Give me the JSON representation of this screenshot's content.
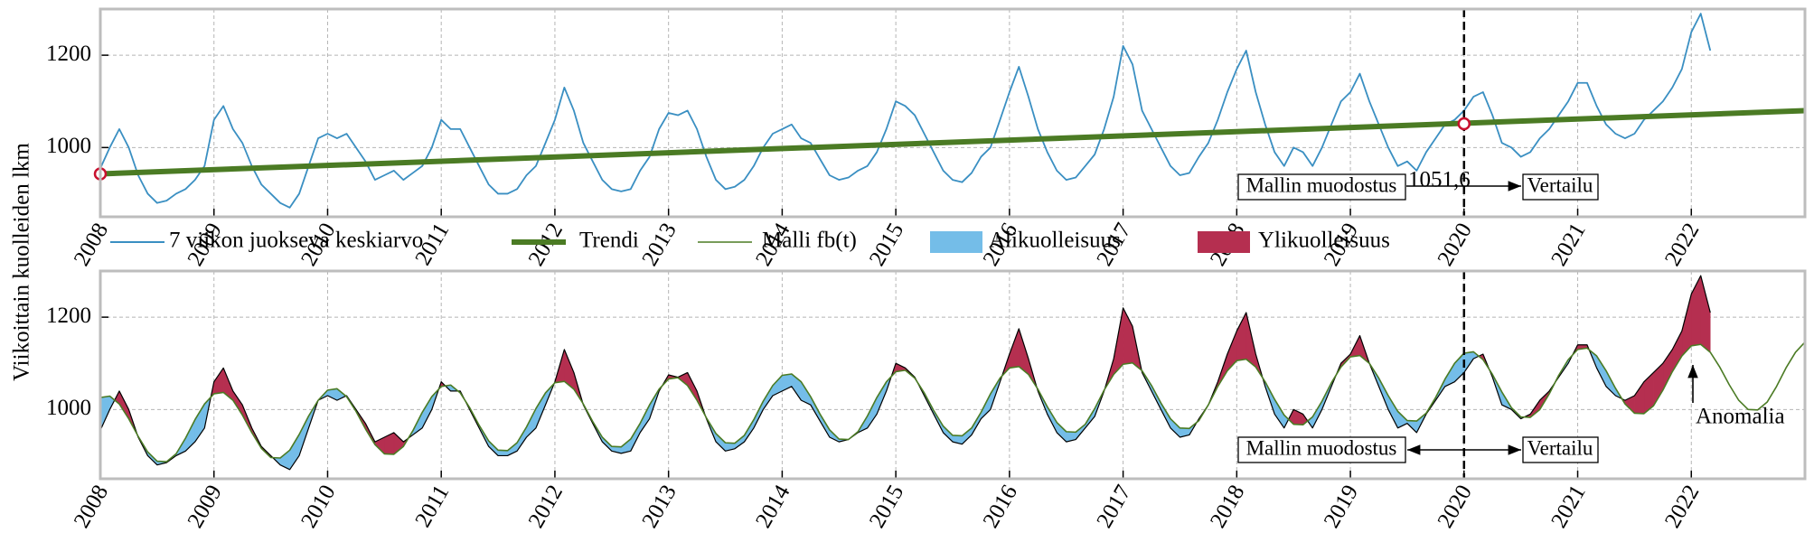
{
  "chart_data": [
    {
      "type": "line",
      "ylabel": "Viikoittain kuolleiden lkm",
      "x": [
        2008,
        2008.083,
        2008.167,
        2008.25,
        2008.333,
        2008.417,
        2008.5,
        2008.583,
        2008.667,
        2008.75,
        2008.833,
        2008.917,
        2009,
        2009.083,
        2009.167,
        2009.25,
        2009.333,
        2009.417,
        2009.5,
        2009.583,
        2009.667,
        2009.75,
        2009.833,
        2009.917,
        2010,
        2010.083,
        2010.167,
        2010.25,
        2010.333,
        2010.417,
        2010.5,
        2010.583,
        2010.667,
        2010.75,
        2010.833,
        2010.917,
        2011,
        2011.083,
        2011.167,
        2011.25,
        2011.333,
        2011.417,
        2011.5,
        2011.583,
        2011.667,
        2011.75,
        2011.833,
        2011.917,
        2012,
        2012.083,
        2012.167,
        2012.25,
        2012.333,
        2012.417,
        2012.5,
        2012.583,
        2012.667,
        2012.75,
        2012.833,
        2012.917,
        2013,
        2013.083,
        2013.167,
        2013.25,
        2013.333,
        2013.417,
        2013.5,
        2013.583,
        2013.667,
        2013.75,
        2013.833,
        2013.917,
        2014,
        2014.083,
        2014.167,
        2014.25,
        2014.333,
        2014.417,
        2014.5,
        2014.583,
        2014.667,
        2014.75,
        2014.833,
        2014.917,
        2015,
        2015.083,
        2015.167,
        2015.25,
        2015.333,
        2015.417,
        2015.5,
        2015.583,
        2015.667,
        2015.75,
        2015.833,
        2015.917,
        2016,
        2016.083,
        2016.167,
        2016.25,
        2016.333,
        2016.417,
        2016.5,
        2016.583,
        2016.667,
        2016.75,
        2016.833,
        2016.917,
        2017,
        2017.083,
        2017.167,
        2017.25,
        2017.333,
        2017.417,
        2017.5,
        2017.583,
        2017.667,
        2017.75,
        2017.833,
        2017.917,
        2018,
        2018.083,
        2018.167,
        2018.25,
        2018.333,
        2018.417,
        2018.5,
        2018.583,
        2018.667,
        2018.75,
        2018.833,
        2018.917,
        2019,
        2019.083,
        2019.167,
        2019.25,
        2019.333,
        2019.417,
        2019.5,
        2019.583,
        2019.667,
        2019.75,
        2019.833,
        2019.917,
        2020,
        2020.083,
        2020.167,
        2020.25,
        2020.333,
        2020.417,
        2020.5,
        2020.583,
        2020.667,
        2020.75,
        2020.833,
        2020.917,
        2021,
        2021.083,
        2021.167,
        2021.25,
        2021.333,
        2021.417,
        2021.5,
        2021.583,
        2021.667,
        2021.75,
        2021.833,
        2021.917,
        2022,
        2022.083,
        2022.167,
        2022.25,
        2022.333,
        2022.417,
        2022.5,
        2022.583,
        2022.667,
        2022.75,
        2022.833,
        2022.917,
        2023
      ],
      "series": [
        {
          "name": "7 viikon juokseva keskiarvo",
          "color": "#3a8fc2",
          "values": [
            955,
            1000,
            1040,
            1000,
            940,
            900,
            880,
            885,
            900,
            910,
            930,
            960,
            1060,
            1090,
            1040,
            1010,
            960,
            920,
            900,
            880,
            870,
            900,
            960,
            1020,
            1030,
            1020,
            1030,
            1000,
            970,
            930,
            940,
            950,
            930,
            945,
            960,
            1000,
            1060,
            1040,
            1040,
            1000,
            960,
            920,
            900,
            900,
            910,
            940,
            960,
            1010,
            1060,
            1130,
            1080,
            1010,
            970,
            930,
            910,
            905,
            910,
            950,
            980,
            1040,
            1075,
            1070,
            1080,
            1040,
            980,
            930,
            910,
            915,
            930,
            960,
            1000,
            1030,
            1040,
            1050,
            1020,
            1010,
            975,
            940,
            930,
            935,
            950,
            960,
            990,
            1040,
            1100,
            1090,
            1070,
            1030,
            990,
            950,
            930,
            925,
            945,
            980,
            1000,
            1060,
            1120,
            1175,
            1110,
            1040,
            990,
            950,
            930,
            935,
            960,
            985,
            1040,
            1110,
            1220,
            1180,
            1080,
            1040,
            1000,
            960,
            940,
            945,
            980,
            1010,
            1060,
            1120,
            1170,
            1210,
            1120,
            1050,
            990,
            960,
            1000,
            990,
            960,
            1000,
            1050,
            1100,
            1120,
            1160,
            1100,
            1050,
            1000,
            960,
            970,
            950,
            990,
            1020,
            1050,
            1060,
            1080,
            1110,
            1120,
            1070,
            1010,
            1000,
            980,
            990,
            1020,
            1040,
            1070,
            1100,
            1140,
            1140,
            1090,
            1050,
            1030,
            1020,
            1030,
            1060,
            1080,
            1100,
            1130,
            1170,
            1250,
            1290,
            1210,
            null,
            null,
            null,
            null,
            null,
            null,
            null,
            null,
            null,
            null
          ]
        },
        {
          "name": "Trendi",
          "color": "#4b7b24",
          "x": [
            2008,
            2023
          ],
          "values": [
            943,
            1080
          ]
        }
      ],
      "points": {
        "x": [
          2008,
          2020
        ],
        "values": [
          943,
          1051.6
        ],
        "color": "#c8102e"
      },
      "point_label": "1051,6",
      "vline": 2020,
      "annotations": [
        "Mallin muodostus",
        "Vertailu"
      ],
      "xlim": [
        2008,
        2023
      ],
      "ylim": [
        850,
        1300
      ],
      "xticks": [
        2008,
        2009,
        2010,
        2011,
        2012,
        2013,
        2014,
        2015,
        2016,
        2017,
        2018,
        2019,
        2020,
        2021,
        2022
      ],
      "yticks": [
        1000,
        1200
      ],
      "grid": true
    },
    {
      "type": "fill_between",
      "x": [
        2008,
        2008.083,
        2008.167,
        2008.25,
        2008.333,
        2008.417,
        2008.5,
        2008.583,
        2008.667,
        2008.75,
        2008.833,
        2008.917,
        2009,
        2009.083,
        2009.167,
        2009.25,
        2009.333,
        2009.417,
        2009.5,
        2009.583,
        2009.667,
        2009.75,
        2009.833,
        2009.917,
        2010,
        2010.083,
        2010.167,
        2010.25,
        2010.333,
        2010.417,
        2010.5,
        2010.583,
        2010.667,
        2010.75,
        2010.833,
        2010.917,
        2011,
        2011.083,
        2011.167,
        2011.25,
        2011.333,
        2011.417,
        2011.5,
        2011.583,
        2011.667,
        2011.75,
        2011.833,
        2011.917,
        2012,
        2012.083,
        2012.167,
        2012.25,
        2012.333,
        2012.417,
        2012.5,
        2012.583,
        2012.667,
        2012.75,
        2012.833,
        2012.917,
        2013,
        2013.083,
        2013.167,
        2013.25,
        2013.333,
        2013.417,
        2013.5,
        2013.583,
        2013.667,
        2013.75,
        2013.833,
        2013.917,
        2014,
        2014.083,
        2014.167,
        2014.25,
        2014.333,
        2014.417,
        2014.5,
        2014.583,
        2014.667,
        2014.75,
        2014.833,
        2014.917,
        2015,
        2015.083,
        2015.167,
        2015.25,
        2015.333,
        2015.417,
        2015.5,
        2015.583,
        2015.667,
        2015.75,
        2015.833,
        2015.917,
        2016,
        2016.083,
        2016.167,
        2016.25,
        2016.333,
        2016.417,
        2016.5,
        2016.583,
        2016.667,
        2016.75,
        2016.833,
        2016.917,
        2017,
        2017.083,
        2017.167,
        2017.25,
        2017.333,
        2017.417,
        2017.5,
        2017.583,
        2017.667,
        2017.75,
        2017.833,
        2017.917,
        2018,
        2018.083,
        2018.167,
        2018.25,
        2018.333,
        2018.417,
        2018.5,
        2018.583,
        2018.667,
        2018.75,
        2018.833,
        2018.917,
        2019,
        2019.083,
        2019.167,
        2019.25,
        2019.333,
        2019.417,
        2019.5,
        2019.583,
        2019.667,
        2019.75,
        2019.833,
        2019.917,
        2020,
        2020.083,
        2020.167,
        2020.25,
        2020.333,
        2020.417,
        2020.5,
        2020.583,
        2020.667,
        2020.75,
        2020.833,
        2020.917,
        2021,
        2021.083,
        2021.167,
        2021.25,
        2021.333,
        2021.417,
        2021.5,
        2021.583,
        2021.667,
        2021.75,
        2021.833,
        2021.917,
        2022,
        2022.083,
        2022.167,
        2022.25,
        2022.333,
        2022.417,
        2022.5,
        2022.583,
        2022.667,
        2022.75,
        2022.833,
        2022.917,
        2023
      ],
      "series": [
        {
          "color": "#000000",
          "values": [
            955,
            1000,
            1040,
            1000,
            940,
            900,
            880,
            885,
            900,
            910,
            930,
            960,
            1060,
            1090,
            1040,
            1010,
            960,
            920,
            900,
            880,
            870,
            900,
            960,
            1020,
            1030,
            1020,
            1030,
            1000,
            970,
            930,
            940,
            950,
            930,
            945,
            960,
            1000,
            1060,
            1040,
            1040,
            1000,
            960,
            920,
            900,
            900,
            910,
            940,
            960,
            1010,
            1060,
            1130,
            1080,
            1010,
            970,
            930,
            910,
            905,
            910,
            950,
            980,
            1040,
            1075,
            1070,
            1080,
            1040,
            980,
            930,
            910,
            915,
            930,
            960,
            1000,
            1030,
            1040,
            1050,
            1020,
            1010,
            975,
            940,
            930,
            935,
            950,
            960,
            990,
            1040,
            1100,
            1090,
            1070,
            1030,
            990,
            950,
            930,
            925,
            945,
            980,
            1000,
            1060,
            1120,
            1175,
            1110,
            1040,
            990,
            950,
            930,
            935,
            960,
            985,
            1040,
            1110,
            1220,
            1180,
            1080,
            1040,
            1000,
            960,
            940,
            945,
            980,
            1010,
            1060,
            1120,
            1170,
            1210,
            1120,
            1050,
            990,
            960,
            1000,
            990,
            960,
            1000,
            1050,
            1100,
            1120,
            1160,
            1100,
            1050,
            1000,
            960,
            970,
            950,
            990,
            1020,
            1050,
            1060,
            1080,
            1110,
            1120,
            1070,
            1010,
            1000,
            980,
            990,
            1020,
            1040,
            1070,
            1100,
            1140,
            1140,
            1090,
            1050,
            1030,
            1020,
            1030,
            1060,
            1080,
            1100,
            1130,
            1170,
            1250,
            1290,
            1210,
            null,
            null,
            null,
            null,
            null,
            null,
            null,
            null,
            null,
            null
          ]
        },
        {
          "name": "Malli fb(t)",
          "color": "#4b7b24",
          "values": [
            1026,
            1029,
            1012,
            980,
            942,
            908,
            888,
            887,
            904,
            938,
            978,
            1012,
            1034,
            1037,
            1020,
            988,
            950,
            916,
            896,
            895,
            912,
            946,
            986,
            1020,
            1042,
            1045,
            1028,
            996,
            958,
            924,
            904,
            903,
            920,
            954,
            994,
            1028,
            1050,
            1053,
            1036,
            1004,
            966,
            932,
            912,
            911,
            928,
            962,
            1002,
            1036,
            1058,
            1061,
            1044,
            1012,
            974,
            940,
            920,
            919,
            936,
            970,
            1010,
            1044,
            1066,
            1069,
            1052,
            1020,
            982,
            948,
            928,
            927,
            944,
            978,
            1018,
            1052,
            1074,
            1077,
            1060,
            1028,
            990,
            956,
            936,
            935,
            952,
            986,
            1026,
            1060,
            1082,
            1085,
            1068,
            1036,
            998,
            964,
            944,
            943,
            960,
            994,
            1034,
            1068,
            1090,
            1093,
            1076,
            1044,
            1006,
            972,
            952,
            951,
            968,
            1002,
            1042,
            1076,
            1098,
            1101,
            1084,
            1052,
            1014,
            980,
            960,
            959,
            976,
            1010,
            1050,
            1084,
            1106,
            1109,
            1092,
            1060,
            1022,
            988,
            968,
            967,
            984,
            1018,
            1058,
            1092,
            1114,
            1117,
            1100,
            1068,
            1030,
            996,
            976,
            975,
            992,
            1026,
            1066,
            1100,
            1122,
            1125,
            1108,
            1076,
            1038,
            1004,
            984,
            983,
            1000,
            1034,
            1074,
            1108,
            1130,
            1133,
            1116,
            1084,
            1046,
            1012,
            992,
            991,
            1008,
            1042,
            1082,
            1116,
            1138,
            1141,
            1124,
            1092,
            1054,
            1020,
            1000,
            999,
            1016,
            1050,
            1090,
            1124,
            1146
          ]
        }
      ],
      "fills": [
        {
          "name": "Alikuolleisuus",
          "color": "#74bde8"
        },
        {
          "name": "Ylikuolleisuus",
          "color": "#b52f50"
        }
      ],
      "vline": 2020,
      "annotations": [
        "Mallin muodostus",
        "Vertailu",
        "Anomalia"
      ],
      "xlim": [
        2008,
        2023
      ],
      "ylim": [
        850,
        1300
      ],
      "xticks": [
        2008,
        2009,
        2010,
        2011,
        2012,
        2013,
        2014,
        2015,
        2016,
        2017,
        2018,
        2019,
        2020,
        2021,
        2022
      ],
      "yticks": [
        1000,
        1200
      ],
      "grid": true
    }
  ]
}
